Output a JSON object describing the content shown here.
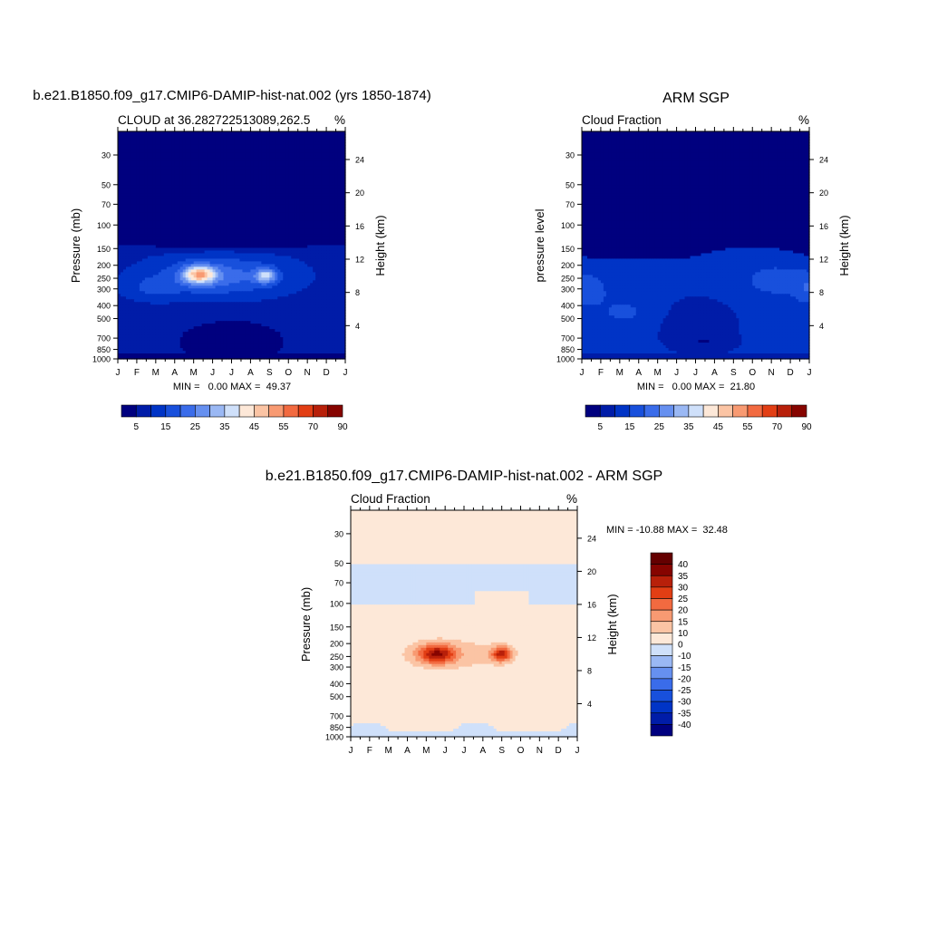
{
  "panels": {
    "model": {
      "title": "b.e21.B1850.f09_g17.CMIP6-DAMIP-hist-nat.002 (yrs 1850-1874)",
      "left_string": "CLOUD at 36.282722513089,262.5",
      "right_string": "%",
      "ylabel": "Pressure (mb)",
      "ylabel_right": "Height (km)",
      "stats": "MIN =   0.00 MAX =  49.37"
    },
    "obs": {
      "title": "ARM SGP",
      "left_string": "Cloud Fraction",
      "right_string": "%",
      "ylabel": "pressure level",
      "ylabel_right": "Height (km)",
      "stats": "MIN =   0.00 MAX =  21.80"
    },
    "diff": {
      "title": "b.e21.B1850.f09_g17.CMIP6-DAMIP-hist-nat.002 - ARM SGP",
      "left_string": "Cloud Fraction",
      "right_string": "%",
      "ylabel": "Pressure (mb)",
      "ylabel_right": "Height (km)",
      "stats": "MIN = -10.88 MAX =  32.48"
    }
  },
  "chart_data": [
    {
      "type": "heatmap",
      "name": "model",
      "units": "%",
      "min": 0.0,
      "max": 49.37,
      "x_ticks": [
        "J",
        "F",
        "M",
        "A",
        "M",
        "J",
        "J",
        "A",
        "S",
        "O",
        "N",
        "D",
        "J"
      ],
      "y_ticks_pressure": [
        30,
        50,
        70,
        100,
        150,
        200,
        250,
        300,
        400,
        500,
        700,
        850,
        1000
      ],
      "y_ticks_height_km": [
        24,
        20,
        16,
        12,
        8,
        4
      ],
      "y_range_mb": [
        20,
        1000
      ],
      "contour_levels": [
        5,
        10,
        15,
        20,
        25,
        30,
        35,
        40,
        45,
        50,
        55,
        60,
        70,
        80,
        90
      ],
      "colorbar_labels": [
        "5",
        "15",
        "25",
        "35",
        "45",
        "55",
        "70",
        "90"
      ],
      "colors": [
        "#00007f",
        "#001ca8",
        "#0034c6",
        "#1850dc",
        "#3a6cea",
        "#6690f0",
        "#9ab8f4",
        "#cfe0fa",
        "#fde8d8",
        "#fbc4a4",
        "#f89a72",
        "#f26a40",
        "#e23e14",
        "#b8200a",
        "#860400"
      ]
    },
    {
      "type": "heatmap",
      "name": "obs",
      "units": "%",
      "min": 0.0,
      "max": 21.8,
      "x_ticks": [
        "J",
        "F",
        "M",
        "A",
        "M",
        "J",
        "J",
        "A",
        "S",
        "O",
        "N",
        "D",
        "J"
      ],
      "y_ticks_pressure": [
        30,
        50,
        70,
        100,
        150,
        200,
        250,
        300,
        400,
        500,
        700,
        850,
        1000
      ],
      "y_ticks_height_km": [
        24,
        20,
        16,
        12,
        8,
        4
      ],
      "y_range_mb": [
        20,
        1000
      ],
      "contour_levels": [
        5,
        10,
        15,
        20,
        25,
        30,
        35,
        40,
        45,
        50,
        55,
        60,
        70,
        80,
        90
      ],
      "colorbar_labels": [
        "5",
        "15",
        "25",
        "35",
        "45",
        "55",
        "70",
        "90"
      ],
      "colors": [
        "#00007f",
        "#001ca8",
        "#0034c6",
        "#1850dc",
        "#3a6cea",
        "#6690f0",
        "#9ab8f4",
        "#cfe0fa",
        "#fde8d8",
        "#fbc4a4",
        "#f89a72",
        "#f26a40",
        "#e23e14",
        "#b8200a",
        "#860400"
      ]
    },
    {
      "type": "heatmap",
      "name": "diff",
      "units": "%",
      "min": -10.88,
      "max": 32.48,
      "x_ticks": [
        "J",
        "F",
        "M",
        "A",
        "M",
        "J",
        "J",
        "A",
        "S",
        "O",
        "N",
        "D",
        "J"
      ],
      "y_ticks_pressure": [
        30,
        50,
        70,
        100,
        150,
        200,
        250,
        300,
        400,
        500,
        700,
        850,
        1000
      ],
      "y_ticks_height_km": [
        24,
        20,
        16,
        12,
        8,
        4
      ],
      "y_range_mb": [
        20,
        1000
      ],
      "contour_levels": [
        -40,
        -35,
        -30,
        -25,
        -20,
        -15,
        -10,
        0,
        10,
        15,
        20,
        25,
        30,
        35,
        40
      ],
      "colorbar_labels": [
        "40",
        "35",
        "30",
        "25",
        "20",
        "15",
        "10",
        "0",
        "-10",
        "-15",
        "-20",
        "-25",
        "-30",
        "-35",
        "-40"
      ],
      "colors": [
        "#00007f",
        "#001ca8",
        "#0034c6",
        "#1850dc",
        "#3a6cea",
        "#6690f0",
        "#9ab8f4",
        "#cfe0fa",
        "#fde8d8",
        "#fbc4a4",
        "#f89a72",
        "#f26a40",
        "#e23e14",
        "#b8200a",
        "#860400",
        "#640000"
      ]
    }
  ]
}
